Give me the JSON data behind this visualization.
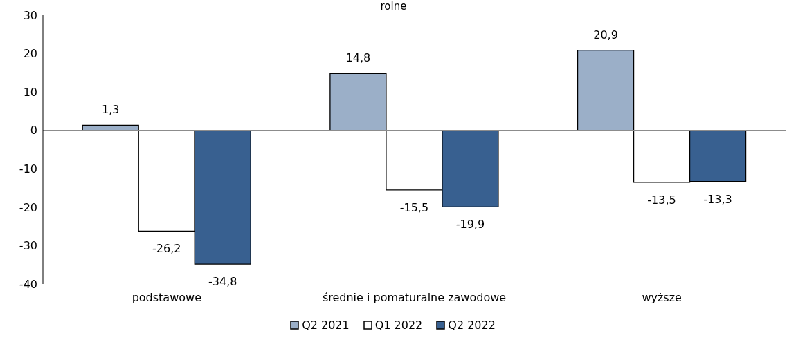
{
  "chart_data": {
    "type": "bar",
    "title": "rolne",
    "categories": [
      "podstawowe",
      "średnie i pomaturalne zawodowe",
      "wyższe"
    ],
    "series": [
      {
        "name": "Q2 2021",
        "color": "#9bafc8",
        "values": [
          1.3,
          14.8,
          20.9
        ],
        "value_labels": [
          "1,3",
          "14,8",
          "20,9"
        ]
      },
      {
        "name": "Q1 2022",
        "color": "#ffffff",
        "values": [
          -26.2,
          -15.5,
          -13.5
        ],
        "value_labels": [
          "-26,2",
          "-15,5",
          "-13,5"
        ]
      },
      {
        "name": "Q2 2022",
        "color": "#386090",
        "values": [
          -34.8,
          -19.9,
          -13.3
        ],
        "value_labels": [
          "-34,8",
          "-19,9",
          "-13,3"
        ]
      }
    ],
    "ylim": [
      -40,
      30
    ],
    "yticks": [
      -40,
      -30,
      -20,
      -10,
      0,
      10,
      20,
      30
    ],
    "legend": "bottom"
  }
}
